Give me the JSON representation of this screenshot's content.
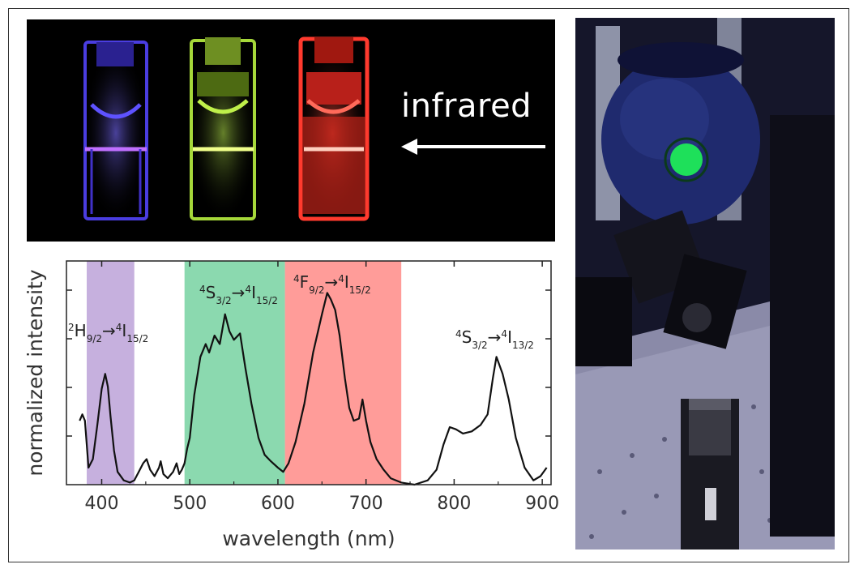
{
  "figure": {
    "top_photo": {
      "arrow_label": "infrared",
      "cuvettes": [
        {
          "name": "blue",
          "color": "#5a4dff"
        },
        {
          "name": "green",
          "color": "#b6f23a"
        },
        {
          "name": "red",
          "color": "#ff3a2e"
        }
      ]
    },
    "right_photo": {
      "spot_color": "#1ee05a"
    }
  },
  "chart_data": {
    "type": "line",
    "xlabel": "wavelength (nm)",
    "ylabel": "normalized intensity",
    "xlim": [
      360,
      910
    ],
    "x_ticks": [
      400,
      500,
      600,
      700,
      800,
      900
    ],
    "x_tick_labels": [
      "400",
      "500",
      "600",
      "700",
      "800",
      "900"
    ],
    "ylim": [
      0,
      1.05
    ],
    "grid": false,
    "bands": [
      {
        "from": 383,
        "to": 437,
        "color": "#a07cc8",
        "label_main": "H",
        "label_sup": "2",
        "label_sub": "9/2",
        "arrow": "→",
        "label_main2": "I",
        "label_sup2": "4",
        "label_sub2": "15/2"
      },
      {
        "from": 494,
        "to": 608,
        "color": "#3ec07a",
        "label_main": "S",
        "label_sup": "4",
        "label_sub": "3/2",
        "arrow": "→",
        "label_main2": "I",
        "label_sup2": "4",
        "label_sub2": "15/2"
      },
      {
        "from": 608,
        "to": 740,
        "color": "#ff5a55",
        "label_main": "F",
        "label_sup": "4",
        "label_sub": "9/2",
        "arrow": "→",
        "label_main2": "I",
        "label_sup2": "4",
        "label_sub2": "15/2"
      }
    ],
    "extra_label": {
      "label_main": "S",
      "label_sup": "4",
      "label_sub": "3/2",
      "arrow": "→",
      "label_main2": "I",
      "label_sup2": "4",
      "label_sub2": "13/2"
    },
    "series": [
      {
        "color": "#111111",
        "x": [
          375,
          378,
          381,
          385,
          390,
          395,
          400,
          404,
          407,
          410,
          414,
          418,
          425,
          432,
          437,
          442,
          447,
          451,
          455,
          460,
          465,
          467,
          470,
          475,
          481,
          485,
          488,
          491,
          494,
          497,
          500,
          505,
          512,
          518,
          522,
          528,
          534,
          540,
          545,
          550,
          557,
          563,
          570,
          578,
          585,
          592,
          600,
          606,
          612,
          620,
          630,
          640,
          650,
          656,
          660,
          665,
          670,
          676,
          681,
          686,
          692,
          696,
          700,
          705,
          712,
          720,
          728,
          740,
          755,
          770,
          780,
          788,
          795,
          802,
          810,
          820,
          830,
          838,
          844,
          848,
          855,
          862,
          870,
          880,
          890,
          898,
          905
        ],
        "y": [
          0.3,
          0.33,
          0.3,
          0.08,
          0.12,
          0.28,
          0.45,
          0.52,
          0.46,
          0.32,
          0.16,
          0.06,
          0.02,
          0.01,
          0.02,
          0.06,
          0.1,
          0.12,
          0.07,
          0.04,
          0.08,
          0.11,
          0.05,
          0.03,
          0.06,
          0.1,
          0.05,
          0.07,
          0.1,
          0.17,
          0.22,
          0.42,
          0.6,
          0.66,
          0.62,
          0.7,
          0.66,
          0.8,
          0.72,
          0.68,
          0.71,
          0.55,
          0.38,
          0.22,
          0.14,
          0.11,
          0.08,
          0.06,
          0.1,
          0.2,
          0.38,
          0.62,
          0.8,
          0.9,
          0.87,
          0.82,
          0.7,
          0.5,
          0.36,
          0.3,
          0.31,
          0.4,
          0.3,
          0.2,
          0.12,
          0.07,
          0.03,
          0.01,
          0.0,
          0.02,
          0.07,
          0.19,
          0.27,
          0.26,
          0.24,
          0.25,
          0.28,
          0.33,
          0.5,
          0.6,
          0.52,
          0.4,
          0.22,
          0.08,
          0.02,
          0.04,
          0.08
        ]
      }
    ]
  }
}
